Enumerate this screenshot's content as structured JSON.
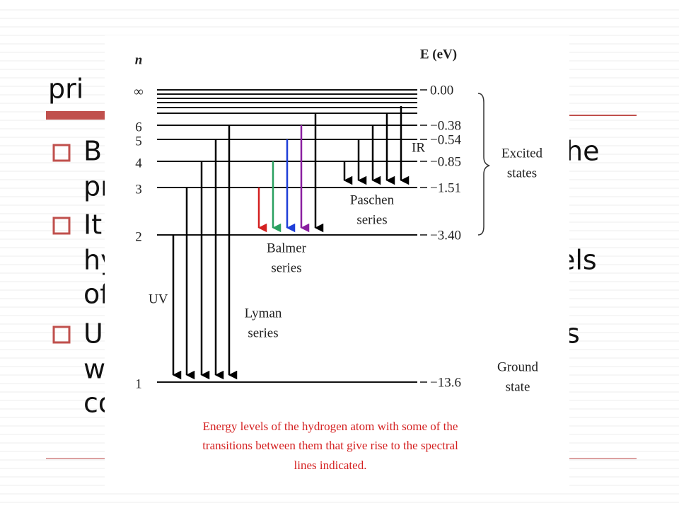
{
  "slide": {
    "title_fragment": "pri",
    "fragments": [
      "B",
      "he",
      "pr",
      "It",
      "hy",
      "els",
      "of",
      "U",
      "s",
      "w",
      "co"
    ]
  },
  "diagram": {
    "n_label": "n",
    "e_label": "E (eV)",
    "levels": [
      {
        "n": "∞",
        "energy": "0.00"
      },
      {
        "n": "6",
        "energy": "−0.38"
      },
      {
        "n": "5",
        "energy": "−0.54"
      },
      {
        "n": "4",
        "energy": "−0.85"
      },
      {
        "n": "3",
        "energy": "−1.51"
      },
      {
        "n": "2",
        "energy": "−3.40"
      },
      {
        "n": "1",
        "energy": "−13.6"
      }
    ],
    "labels": {
      "uv": "UV",
      "ir": "IR",
      "lyman": [
        "Lyman",
        "series"
      ],
      "balmer": [
        "Balmer",
        "series"
      ],
      "paschen": [
        "Paschen",
        "series"
      ],
      "excited": [
        "Excited",
        "states"
      ],
      "ground": [
        "Ground",
        "state"
      ]
    },
    "caption": [
      "Energy levels of the hydrogen atom with some of the",
      "transitions between them that give rise to the spectral",
      "lines indicated."
    ]
  }
}
